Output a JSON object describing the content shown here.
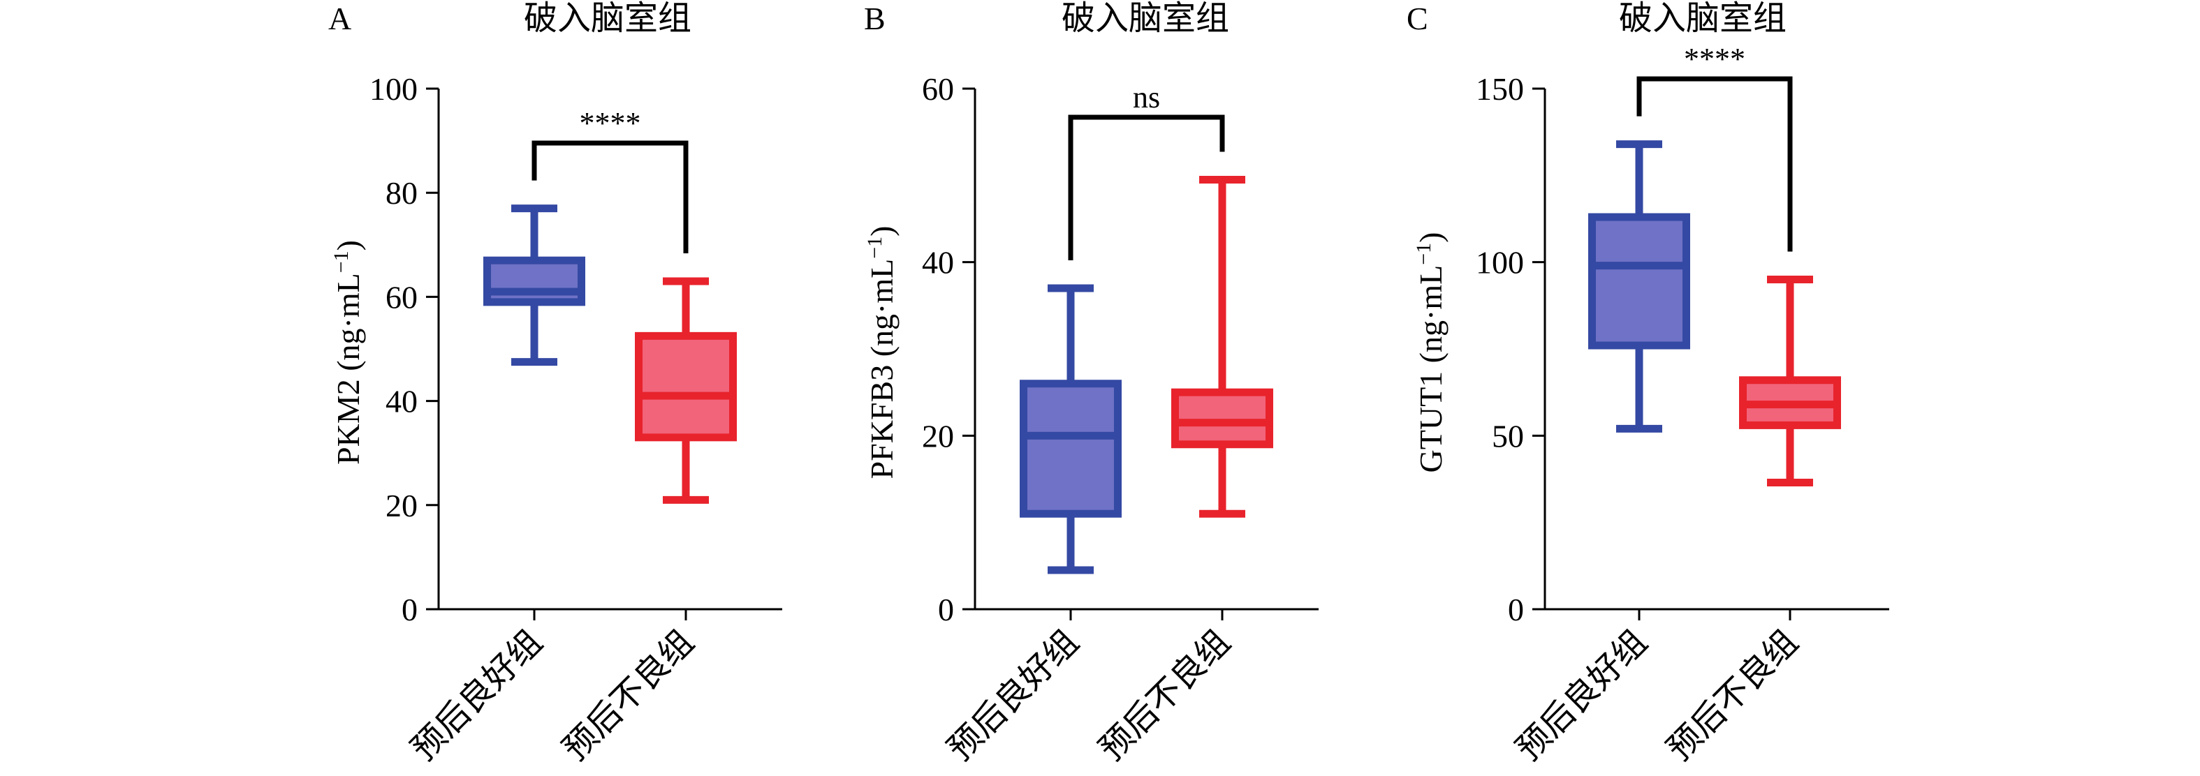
{
  "colors": {
    "good": {
      "stroke": "#3449a3",
      "fill": "#6f72c6",
      "median": "#7d84d1"
    },
    "poor": {
      "stroke": "#e8232c",
      "fill": "#f2647a",
      "median": "#f58a9d"
    }
  },
  "chart_data": [
    {
      "type": "box",
      "panel": "A",
      "title": "破入脑室组",
      "ylabel_main": "PKM2 (ng·mL",
      "ylabel_sup": "−1",
      "ylabel_close": ")",
      "ylim": [
        0,
        100
      ],
      "yticks": [
        0,
        20,
        40,
        60,
        80,
        100
      ],
      "categories": [
        "预后良好组",
        "预后不良组"
      ],
      "boxes": [
        {
          "min": 47.5,
          "q1": 59,
          "median": 61,
          "q3": 67,
          "max": 77
        },
        {
          "min": 21,
          "q1": 33,
          "median": 41,
          "q3": 52.5,
          "max": 63
        }
      ],
      "significance": "****"
    },
    {
      "type": "box",
      "panel": "B",
      "title": "破入脑室组",
      "ylabel_main": "PFKFB3 (ng·mL",
      "ylabel_sup": "−1",
      "ylabel_close": ")",
      "ylim": [
        0,
        60
      ],
      "yticks": [
        0,
        20,
        40,
        60
      ],
      "categories": [
        "预后良好组",
        "预后不良组"
      ],
      "boxes": [
        {
          "min": 4.5,
          "q1": 11,
          "median": 20,
          "q3": 26,
          "max": 37
        },
        {
          "min": 11,
          "q1": 19,
          "median": 21.5,
          "q3": 25,
          "max": 49.5
        }
      ],
      "significance": "ns"
    },
    {
      "type": "box",
      "panel": "C",
      "title": "破入脑室组",
      "ylabel_main": "GTUT1 (ng·mL",
      "ylabel_sup": "−1",
      "ylabel_close": ")",
      "ylim": [
        0,
        150
      ],
      "yticks": [
        0,
        50,
        100,
        150
      ],
      "categories": [
        "预后良好组",
        "预后不良组"
      ],
      "boxes": [
        {
          "min": 52,
          "q1": 76,
          "median": 99,
          "q3": 113,
          "max": 134
        },
        {
          "min": 36.5,
          "q1": 53,
          "median": 59,
          "q3": 66,
          "max": 95
        }
      ],
      "significance": "****"
    }
  ]
}
